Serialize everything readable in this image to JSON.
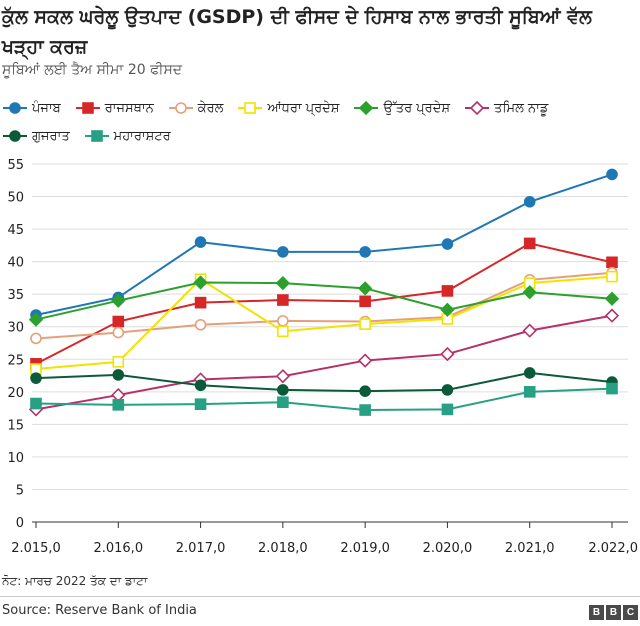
{
  "header": {
    "title": "ਕੁੱਲ ਸਕਲ ਘਰੇਲੂ ਉਤਪਾਦ (GSDP) ਦੀ ਫੀਸਦ ਦੇ ਹਿਸਾਬ ਨਾਲ ਭਾਰਤੀ ਸੂਬਿਆਂ ਵੱਲ ਖੜ੍ਹਾ ਕਰਜ਼",
    "subtitle": "ਸੂਬਿਆਂ ਲਈ ਤੈਅ ਸੀਮਾ 20 ਫੀਸਦ"
  },
  "footer": {
    "note": "ਨੋਟ: ਮਾਰਚ 2022 ਤੱਕ ਦਾ ਡਾਟਾ",
    "source": "Source: Reserve Bank of India",
    "logo": [
      "B",
      "B",
      "C"
    ]
  },
  "chart_data": {
    "type": "line",
    "title": "ਕੁੱਲ ਸਕਲ ਘਰੇਲੂ ਉਤਪਾਦ (GSDP) ਦੀ ਫੀਸਦ ਦੇ ਹਿਸਾਬ ਨਾਲ ਭਾਰਤੀ ਸੂਬਿਆਂ ਵੱਲ ਖੜ੍ਹਾ ਕਰਜ਼",
    "xlabel": "",
    "ylabel": "",
    "x": [
      "2.015,0",
      "2.016,0",
      "2.017,0",
      "2.018,0",
      "2.019,0",
      "2.020,0",
      "2.021,0",
      "2.022,0"
    ],
    "ylim": [
      0,
      55
    ],
    "yticks": [
      "0",
      "5",
      "10",
      "15",
      "20",
      "25",
      "30",
      "35",
      "40",
      "45",
      "50",
      "55"
    ],
    "grid": true,
    "legend_position": "top",
    "series": [
      {
        "name": "ਪੰਜਾਬ",
        "color": "#1f77b4",
        "marker": "circle-filled",
        "values": [
          31.8,
          34.5,
          43.0,
          41.5,
          41.5,
          42.7,
          49.2,
          53.4
        ]
      },
      {
        "name": "ਰਾਜਸਥਾਨ",
        "color": "#d62728",
        "marker": "square-filled",
        "values": [
          24.3,
          30.8,
          33.7,
          34.1,
          33.9,
          35.5,
          42.8,
          39.9
        ]
      },
      {
        "name": "ਕੇਰਲ",
        "color": "#e5a07a",
        "marker": "circle-open",
        "values": [
          28.2,
          29.1,
          30.3,
          30.9,
          30.8,
          31.5,
          37.2,
          38.3
        ]
      },
      {
        "name": "ਆਂਧਰਾ ਪ੍ਰਦੇਸ਼",
        "color": "#f2e200",
        "marker": "square-open",
        "values": [
          23.5,
          24.6,
          37.3,
          29.3,
          30.4,
          31.2,
          36.7,
          37.7
        ]
      },
      {
        "name": "ਉੱਤਰ ਪ੍ਰਦੇਸ਼",
        "color": "#2ca02c",
        "marker": "diamond-filled",
        "values": [
          31.1,
          34.0,
          36.8,
          36.7,
          35.9,
          32.6,
          35.3,
          34.3
        ]
      },
      {
        "name": "ਤਮਿਲ ਨਾਡੂ",
        "color": "#b5316a",
        "marker": "diamond-open",
        "values": [
          17.3,
          19.5,
          21.9,
          22.4,
          24.8,
          25.8,
          29.4,
          31.7
        ]
      },
      {
        "name": "ਗੁਜਰਾਤ",
        "color": "#0b5a3a",
        "marker": "circle-filled",
        "values": [
          22.1,
          22.6,
          21.0,
          20.3,
          20.1,
          20.3,
          22.9,
          21.5
        ]
      },
      {
        "name": "ਮਹਾਰਾਸ਼ਟਰ",
        "color": "#27a083",
        "marker": "square-filled",
        "values": [
          18.2,
          18.0,
          18.1,
          18.4,
          17.2,
          17.3,
          20.0,
          20.5
        ]
      }
    ]
  }
}
